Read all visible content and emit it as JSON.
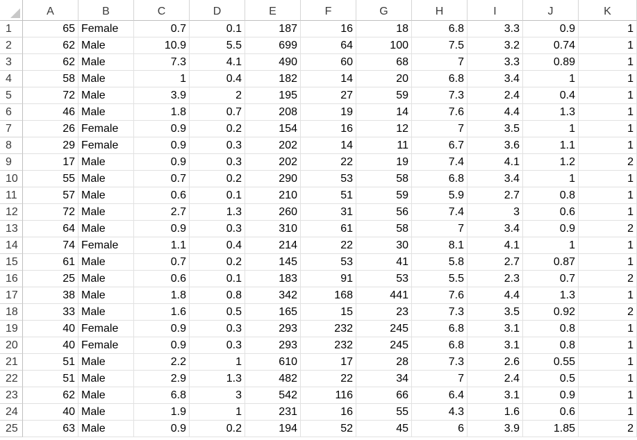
{
  "columns": [
    "A",
    "B",
    "C",
    "D",
    "E",
    "F",
    "G",
    "H",
    "I",
    "J",
    "K"
  ],
  "rows": [
    {
      "n": "1",
      "cells": [
        "65",
        "Female",
        "0.7",
        "0.1",
        "187",
        "16",
        "18",
        "6.8",
        "3.3",
        "0.9",
        "1"
      ]
    },
    {
      "n": "2",
      "cells": [
        "62",
        "Male",
        "10.9",
        "5.5",
        "699",
        "64",
        "100",
        "7.5",
        "3.2",
        "0.74",
        "1"
      ]
    },
    {
      "n": "3",
      "cells": [
        "62",
        "Male",
        "7.3",
        "4.1",
        "490",
        "60",
        "68",
        "7",
        "3.3",
        "0.89",
        "1"
      ]
    },
    {
      "n": "4",
      "cells": [
        "58",
        "Male",
        "1",
        "0.4",
        "182",
        "14",
        "20",
        "6.8",
        "3.4",
        "1",
        "1"
      ]
    },
    {
      "n": "5",
      "cells": [
        "72",
        "Male",
        "3.9",
        "2",
        "195",
        "27",
        "59",
        "7.3",
        "2.4",
        "0.4",
        "1"
      ]
    },
    {
      "n": "6",
      "cells": [
        "46",
        "Male",
        "1.8",
        "0.7",
        "208",
        "19",
        "14",
        "7.6",
        "4.4",
        "1.3",
        "1"
      ]
    },
    {
      "n": "7",
      "cells": [
        "26",
        "Female",
        "0.9",
        "0.2",
        "154",
        "16",
        "12",
        "7",
        "3.5",
        "1",
        "1"
      ]
    },
    {
      "n": "8",
      "cells": [
        "29",
        "Female",
        "0.9",
        "0.3",
        "202",
        "14",
        "11",
        "6.7",
        "3.6",
        "1.1",
        "1"
      ]
    },
    {
      "n": "9",
      "cells": [
        "17",
        "Male",
        "0.9",
        "0.3",
        "202",
        "22",
        "19",
        "7.4",
        "4.1",
        "1.2",
        "2"
      ]
    },
    {
      "n": "10",
      "cells": [
        "55",
        "Male",
        "0.7",
        "0.2",
        "290",
        "53",
        "58",
        "6.8",
        "3.4",
        "1",
        "1"
      ]
    },
    {
      "n": "11",
      "cells": [
        "57",
        "Male",
        "0.6",
        "0.1",
        "210",
        "51",
        "59",
        "5.9",
        "2.7",
        "0.8",
        "1"
      ]
    },
    {
      "n": "12",
      "cells": [
        "72",
        "Male",
        "2.7",
        "1.3",
        "260",
        "31",
        "56",
        "7.4",
        "3",
        "0.6",
        "1"
      ]
    },
    {
      "n": "13",
      "cells": [
        "64",
        "Male",
        "0.9",
        "0.3",
        "310",
        "61",
        "58",
        "7",
        "3.4",
        "0.9",
        "2"
      ]
    },
    {
      "n": "14",
      "cells": [
        "74",
        "Female",
        "1.1",
        "0.4",
        "214",
        "22",
        "30",
        "8.1",
        "4.1",
        "1",
        "1"
      ]
    },
    {
      "n": "15",
      "cells": [
        "61",
        "Male",
        "0.7",
        "0.2",
        "145",
        "53",
        "41",
        "5.8",
        "2.7",
        "0.87",
        "1"
      ]
    },
    {
      "n": "16",
      "cells": [
        "25",
        "Male",
        "0.6",
        "0.1",
        "183",
        "91",
        "53",
        "5.5",
        "2.3",
        "0.7",
        "2"
      ]
    },
    {
      "n": "17",
      "cells": [
        "38",
        "Male",
        "1.8",
        "0.8",
        "342",
        "168",
        "441",
        "7.6",
        "4.4",
        "1.3",
        "1"
      ]
    },
    {
      "n": "18",
      "cells": [
        "33",
        "Male",
        "1.6",
        "0.5",
        "165",
        "15",
        "23",
        "7.3",
        "3.5",
        "0.92",
        "2"
      ]
    },
    {
      "n": "19",
      "cells": [
        "40",
        "Female",
        "0.9",
        "0.3",
        "293",
        "232",
        "245",
        "6.8",
        "3.1",
        "0.8",
        "1"
      ]
    },
    {
      "n": "20",
      "cells": [
        "40",
        "Female",
        "0.9",
        "0.3",
        "293",
        "232",
        "245",
        "6.8",
        "3.1",
        "0.8",
        "1"
      ]
    },
    {
      "n": "21",
      "cells": [
        "51",
        "Male",
        "2.2",
        "1",
        "610",
        "17",
        "28",
        "7.3",
        "2.6",
        "0.55",
        "1"
      ]
    },
    {
      "n": "22",
      "cells": [
        "51",
        "Male",
        "2.9",
        "1.3",
        "482",
        "22",
        "34",
        "7",
        "2.4",
        "0.5",
        "1"
      ]
    },
    {
      "n": "23",
      "cells": [
        "62",
        "Male",
        "6.8",
        "3",
        "542",
        "116",
        "66",
        "6.4",
        "3.1",
        "0.9",
        "1"
      ]
    },
    {
      "n": "24",
      "cells": [
        "40",
        "Male",
        "1.9",
        "1",
        "231",
        "16",
        "55",
        "4.3",
        "1.6",
        "0.6",
        "1"
      ]
    },
    {
      "n": "25",
      "cells": [
        "63",
        "Male",
        "0.9",
        "0.2",
        "194",
        "52",
        "45",
        "6",
        "3.9",
        "1.85",
        "2"
      ]
    }
  ]
}
